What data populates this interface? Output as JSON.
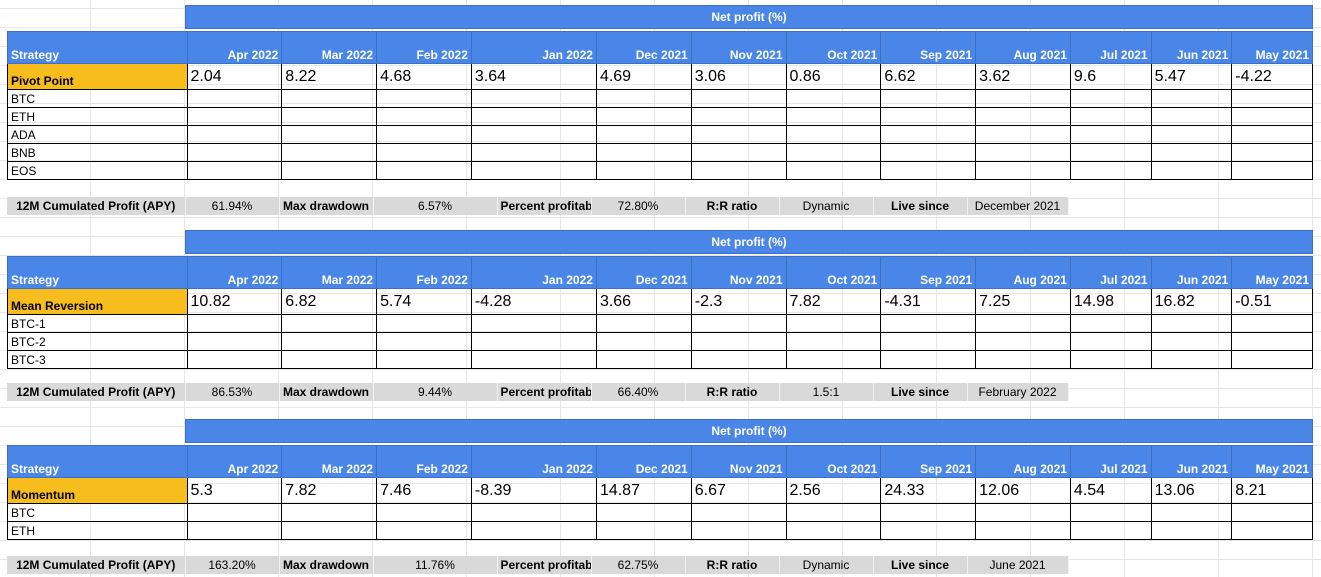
{
  "colors": {
    "header_blue": "#4a86e8",
    "strategy_gold": "#f6bd1c",
    "stats_gray": "#d9d9d9"
  },
  "strategy_header": "Strategy",
  "months": [
    "Apr 2022",
    "Mar 2022",
    "Feb 2022",
    "Jan 2022",
    "Dec 2021",
    "Nov 2021",
    "Oct 2021",
    "Sep 2021",
    "Aug 2021",
    "Jul 2021",
    "Jun 2021",
    "May 2021"
  ],
  "blocks": [
    {
      "net_profit_label": "Net profit (%)",
      "strategy": "Pivot Point",
      "values": [
        "2.04",
        "8.22",
        "4.68",
        "3.64",
        "4.69",
        "3.06",
        "0.86",
        "6.62",
        "3.62",
        "9.6",
        "5.47",
        "-4.22"
      ],
      "assets": [
        "BTC",
        "ETH",
        "ADA",
        "BNB",
        "EOS"
      ],
      "stats": {
        "cum_label": "12M Cumulated Profit (APY)",
        "cum_value": "61.94%",
        "dd_label": "Max drawdown",
        "dd_value": "6.57%",
        "pp_label": "Percent profitable",
        "pp_value": "72.80%",
        "rr_label": "R:R ratio",
        "rr_value": "Dynamic",
        "live_label": "Live since",
        "live_value": "December 2021"
      }
    },
    {
      "net_profit_label": "Net profit (%)",
      "strategy": "Mean Reversion",
      "values": [
        "10.82",
        "6.82",
        "5.74",
        "-4.28",
        "3.66",
        "-2.3",
        "7.82",
        "-4.31",
        "7.25",
        "14.98",
        "16.82",
        "-0.51"
      ],
      "assets": [
        "BTC-1",
        "BTC-2",
        "BTC-3"
      ],
      "stats": {
        "cum_label": "12M Cumulated Profit (APY)",
        "cum_value": "86.53%",
        "dd_label": "Max drawdown",
        "dd_value": "9.44%",
        "pp_label": "Percent profitable",
        "pp_value": "66.40%",
        "rr_label": "R:R ratio",
        "rr_value": "1.5:1",
        "live_label": "Live since",
        "live_value": "February 2022"
      }
    },
    {
      "net_profit_label": "Net profit (%)",
      "strategy": "Momentum",
      "values": [
        "5.3",
        "7.82",
        "7.46",
        "-8.39",
        "14.87",
        "6.67",
        "2.56",
        "24.33",
        "12.06",
        "4.54",
        "13.06",
        "8.21"
      ],
      "assets": [
        "BTC",
        "ETH"
      ],
      "stats": {
        "cum_label": "12M Cumulated Profit (APY)",
        "cum_value": "163.20%",
        "dd_label": "Max drawdown",
        "dd_value": "11.76%",
        "pp_label": "Percent profitable",
        "pp_value": "62.75%",
        "rr_label": "R:R ratio",
        "rr_value": "Dynamic",
        "live_label": "Live since",
        "live_value": "June 2021"
      }
    }
  ]
}
